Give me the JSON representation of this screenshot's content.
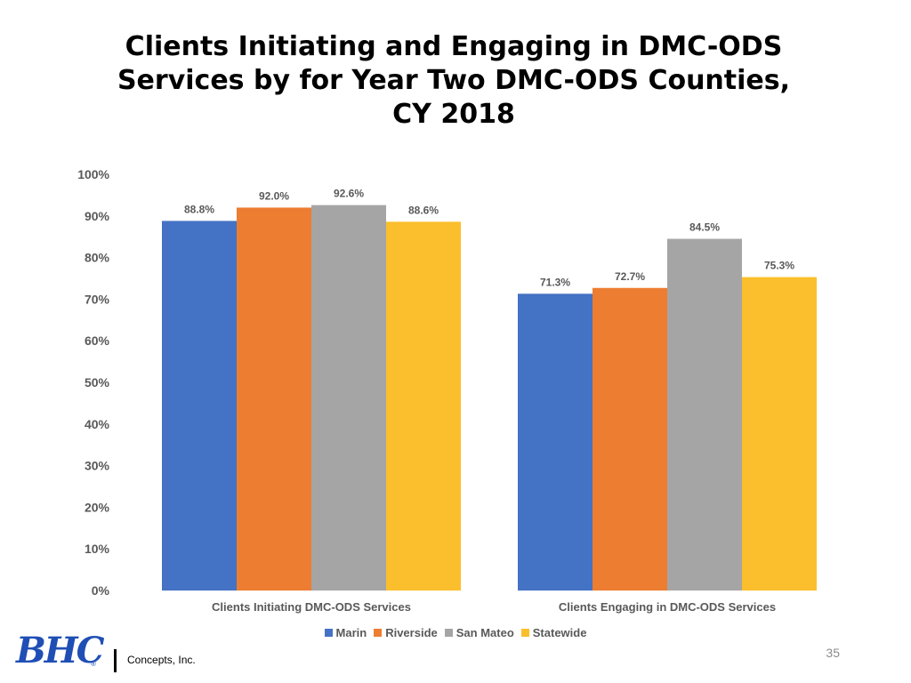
{
  "slide": {
    "title_lines": [
      "Clients Initiating and Engaging in DMC-ODS",
      "Services by for Year Two DMC-ODS Counties,",
      "CY 2018"
    ],
    "page_number": "35"
  },
  "logo": {
    "mark": "BHC",
    "registered": "®",
    "company": "Concepts, Inc."
  },
  "chart_data": {
    "type": "bar",
    "title": "Clients Initiating and Engaging in DMC-ODS Services by for Year Two DMC-ODS Counties, CY 2018",
    "xlabel": "",
    "ylabel": "",
    "ylim": [
      0,
      100
    ],
    "y_ticks": [
      0,
      10,
      20,
      30,
      40,
      50,
      60,
      70,
      80,
      90,
      100
    ],
    "y_tick_labels": [
      "0%",
      "10%",
      "20%",
      "30%",
      "40%",
      "50%",
      "60%",
      "70%",
      "80%",
      "90%",
      "100%"
    ],
    "grid": false,
    "legend_position": "bottom",
    "categories": [
      "Clients Initiating DMC-ODS Services",
      "Clients Engaging in DMC-ODS Services"
    ],
    "series": [
      {
        "name": "Marin",
        "color": "#4472C4",
        "values": [
          88.8,
          71.3
        ],
        "labels": [
          "88.8%",
          "71.3%"
        ]
      },
      {
        "name": "Riverside",
        "color": "#ED7D31",
        "values": [
          92.0,
          72.7
        ],
        "labels": [
          "92.0%",
          "72.7%"
        ]
      },
      {
        "name": "San Mateo",
        "color": "#A5A5A5",
        "values": [
          92.6,
          84.5
        ],
        "labels": [
          "92.6%",
          "84.5%"
        ]
      },
      {
        "name": "Statewide",
        "color": "#FBBF2D",
        "values": [
          88.6,
          75.3
        ],
        "labels": [
          "88.6%",
          "75.3%"
        ]
      }
    ]
  }
}
